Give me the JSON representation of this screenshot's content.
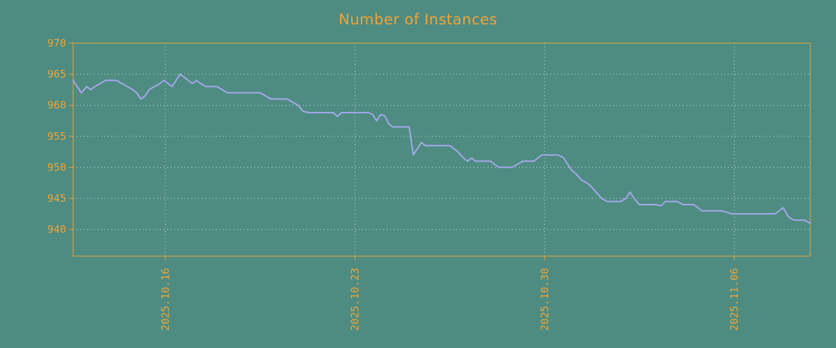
{
  "chart_data": {
    "type": "line",
    "title": "Number of Instances",
    "series_name": "instances",
    "background_color": "#4e8c82",
    "axis_color": "#efa437",
    "line_color": "#a8a8ec",
    "grid_color": "#ffffff",
    "ylim": [
      935.7,
      970
    ],
    "yticks": [
      940,
      945,
      950,
      955,
      960,
      965,
      970
    ],
    "x_domain": [
      0,
      27.2
    ],
    "xticks": [
      {
        "t": 3.4,
        "label": "2025.10.16"
      },
      {
        "t": 10.4,
        "label": "2025.10.23"
      },
      {
        "t": 17.4,
        "label": "2025.10.30"
      },
      {
        "t": 24.4,
        "label": "2025.11.06"
      }
    ],
    "points": [
      [
        0.0,
        964
      ],
      [
        0.15,
        963
      ],
      [
        0.3,
        962
      ],
      [
        0.5,
        963
      ],
      [
        0.65,
        962.5
      ],
      [
        0.8,
        963
      ],
      [
        1.0,
        963.5
      ],
      [
        1.2,
        964
      ],
      [
        1.6,
        964
      ],
      [
        1.8,
        963.5
      ],
      [
        2.0,
        963
      ],
      [
        2.2,
        962.5
      ],
      [
        2.35,
        962
      ],
      [
        2.5,
        961
      ],
      [
        2.65,
        961.5
      ],
      [
        2.8,
        962.5
      ],
      [
        3.0,
        963
      ],
      [
        3.2,
        963.5
      ],
      [
        3.35,
        964
      ],
      [
        3.5,
        963.5
      ],
      [
        3.65,
        963
      ],
      [
        3.8,
        964
      ],
      [
        3.95,
        965
      ],
      [
        4.1,
        964.5
      ],
      [
        4.25,
        964
      ],
      [
        4.4,
        963.5
      ],
      [
        4.55,
        964
      ],
      [
        4.7,
        963.5
      ],
      [
        4.9,
        963
      ],
      [
        5.3,
        963
      ],
      [
        5.5,
        962.5
      ],
      [
        5.7,
        962
      ],
      [
        6.9,
        962
      ],
      [
        7.1,
        961.5
      ],
      [
        7.3,
        961
      ],
      [
        7.9,
        961
      ],
      [
        8.1,
        960.5
      ],
      [
        8.3,
        960
      ],
      [
        8.5,
        959
      ],
      [
        8.7,
        958.8
      ],
      [
        9.6,
        958.8
      ],
      [
        9.75,
        958.2
      ],
      [
        9.9,
        958.8
      ],
      [
        10.9,
        958.8
      ],
      [
        11.05,
        958.5
      ],
      [
        11.2,
        957.5
      ],
      [
        11.35,
        958.5
      ],
      [
        11.5,
        958.3
      ],
      [
        11.65,
        957
      ],
      [
        11.8,
        956.5
      ],
      [
        12.4,
        956.5
      ],
      [
        12.55,
        952
      ],
      [
        12.7,
        953
      ],
      [
        12.85,
        954
      ],
      [
        13.0,
        953.5
      ],
      [
        13.9,
        953.5
      ],
      [
        14.05,
        953
      ],
      [
        14.2,
        952.5
      ],
      [
        14.4,
        951.5
      ],
      [
        14.55,
        951
      ],
      [
        14.7,
        951.5
      ],
      [
        14.85,
        951
      ],
      [
        15.4,
        951
      ],
      [
        15.55,
        950.5
      ],
      [
        15.7,
        950
      ],
      [
        16.2,
        950
      ],
      [
        16.4,
        950.5
      ],
      [
        16.6,
        951
      ],
      [
        17.0,
        951
      ],
      [
        17.15,
        951.5
      ],
      [
        17.3,
        952
      ],
      [
        17.9,
        952
      ],
      [
        18.1,
        951.5
      ],
      [
        18.25,
        950.5
      ],
      [
        18.4,
        949.5
      ],
      [
        18.55,
        949
      ],
      [
        18.75,
        948
      ],
      [
        18.95,
        947.5
      ],
      [
        19.1,
        947
      ],
      [
        19.3,
        946
      ],
      [
        19.5,
        945
      ],
      [
        19.7,
        944.5
      ],
      [
        20.2,
        944.5
      ],
      [
        20.4,
        945
      ],
      [
        20.55,
        946
      ],
      [
        20.7,
        945
      ],
      [
        20.9,
        944
      ],
      [
        21.5,
        944
      ],
      [
        21.7,
        943.8
      ],
      [
        21.85,
        944.5
      ],
      [
        22.3,
        944.5
      ],
      [
        22.5,
        944
      ],
      [
        22.9,
        944
      ],
      [
        23.05,
        943.5
      ],
      [
        23.2,
        943
      ],
      [
        23.9,
        943
      ],
      [
        24.1,
        942.8
      ],
      [
        24.3,
        942.5
      ],
      [
        25.9,
        942.5
      ],
      [
        26.05,
        943
      ],
      [
        26.2,
        943.5
      ],
      [
        26.4,
        942
      ],
      [
        26.6,
        941.5
      ],
      [
        27.0,
        941.5
      ],
      [
        27.2,
        941
      ]
    ]
  }
}
